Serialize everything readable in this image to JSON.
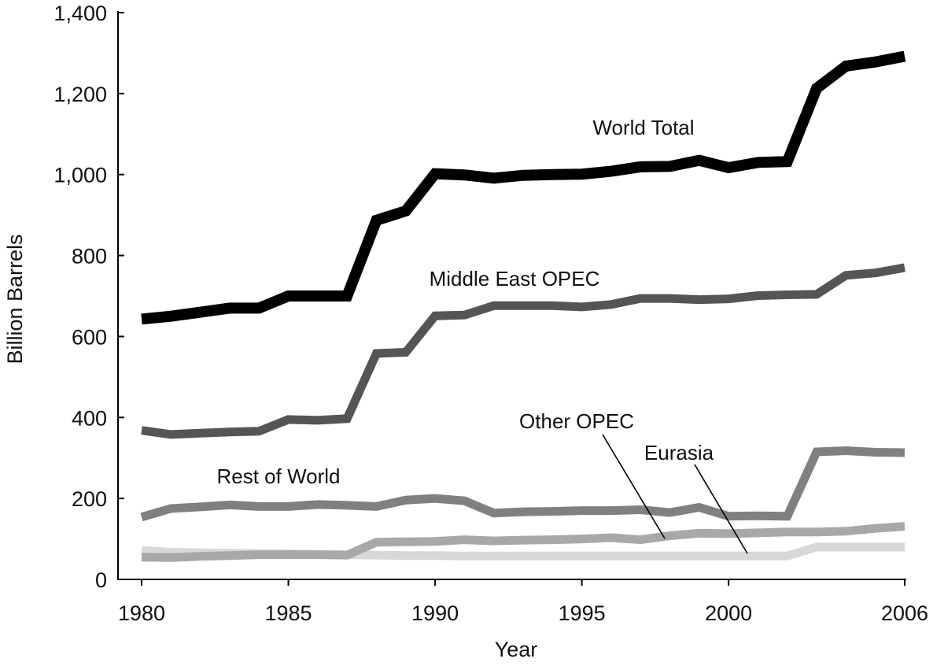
{
  "chart_data": {
    "type": "line",
    "title": "",
    "xlabel": "Year",
    "ylabel": "Billion Barrels",
    "xlim": [
      1980,
      2006
    ],
    "ylim": [
      0,
      1400
    ],
    "x_ticks": [
      "1980",
      "1985",
      "1990",
      "1995",
      "2000",
      "2006"
    ],
    "y_ticks": [
      "0",
      "200",
      "400",
      "600",
      "800",
      "1,000",
      "1,200",
      "1,400"
    ],
    "grid": false,
    "legend": "none",
    "x": [
      1980,
      1981,
      1982,
      1983,
      1984,
      1985,
      1986,
      1987,
      1988,
      1989,
      1990,
      1991,
      1992,
      1993,
      1994,
      1995,
      1996,
      1997,
      1998,
      1999,
      2000,
      2001,
      2002,
      2003,
      2004,
      2005,
      2006
    ],
    "series": [
      {
        "name": "World Total",
        "color": "#000000",
        "values": [
          643,
          650,
          660,
          670,
          670,
          700,
          700,
          700,
          887,
          910,
          1002,
          999,
          991,
          998,
          1000,
          1001,
          1008,
          1019,
          1020,
          1035,
          1017,
          1030,
          1032,
          1213,
          1268,
          1278,
          1292
        ]
      },
      {
        "name": "Middle East OPEC",
        "color": "#555555",
        "values": [
          368,
          358,
          361,
          364,
          366,
          395,
          393,
          397,
          558,
          561,
          651,
          653,
          676,
          676,
          676,
          673,
          679,
          694,
          694,
          691,
          693,
          701,
          703,
          704,
          751,
          757,
          770
        ]
      },
      {
        "name": "Rest of World",
        "color": "#808080",
        "values": [
          154,
          175,
          179,
          184,
          180,
          180,
          185,
          183,
          180,
          196,
          200,
          194,
          164,
          167,
          168,
          170,
          170,
          172,
          165,
          178,
          156,
          157,
          156,
          315,
          318,
          314,
          313
        ]
      },
      {
        "name": "Other OPEC",
        "color": "#a8a8a8",
        "values": [
          55,
          54,
          57,
          59,
          61,
          61,
          61,
          60,
          92,
          93,
          94,
          98,
          95,
          97,
          98,
          100,
          103,
          98,
          108,
          114,
          113,
          115,
          117,
          117,
          119,
          126,
          131
        ]
      },
      {
        "name": "Eurasia",
        "color": "#d8d8d8",
        "values": [
          72,
          67,
          66,
          65,
          64,
          63,
          62,
          61,
          60,
          59,
          59,
          58,
          58,
          58,
          58,
          58,
          58,
          58,
          58,
          58,
          58,
          58,
          58,
          80,
          80,
          80,
          80
        ]
      }
    ]
  }
}
